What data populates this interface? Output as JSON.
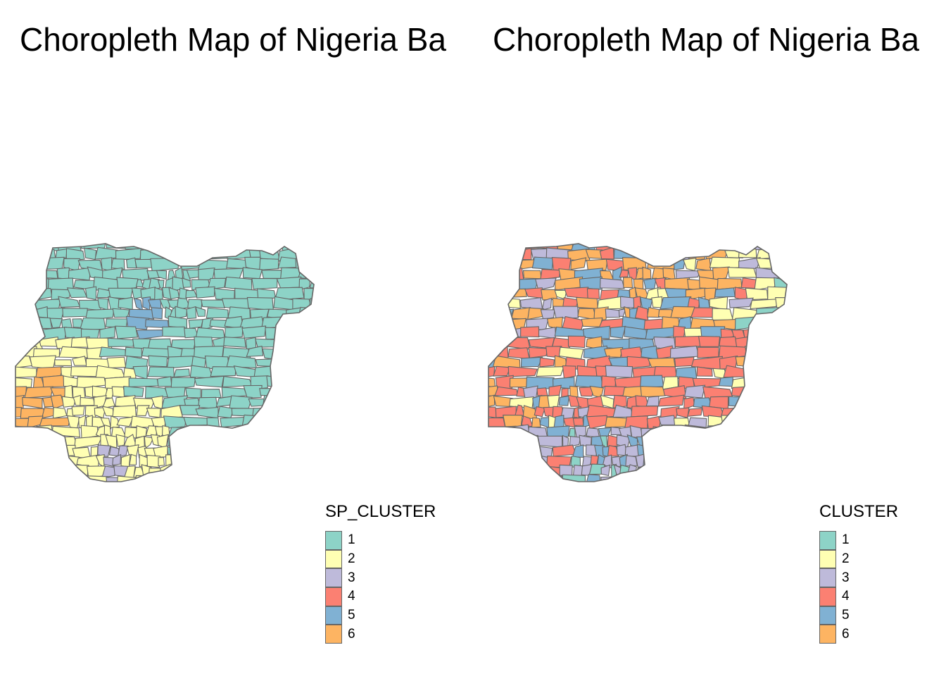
{
  "panels": [
    {
      "title": "Choropleth Map of Nigeria Ba",
      "legend_title": "SP_CLUSTER"
    },
    {
      "title": "Choropleth Map of Nigeria Ba",
      "legend_title": "CLUSTER"
    }
  ],
  "legend": {
    "labels": [
      "1",
      "2",
      "3",
      "4",
      "5",
      "6"
    ],
    "colors": [
      "#8DD3C7",
      "#FFFFB3",
      "#BEBADA",
      "#FB8072",
      "#80B1D3",
      "#FDB462"
    ]
  },
  "border_color": "#666666"
}
